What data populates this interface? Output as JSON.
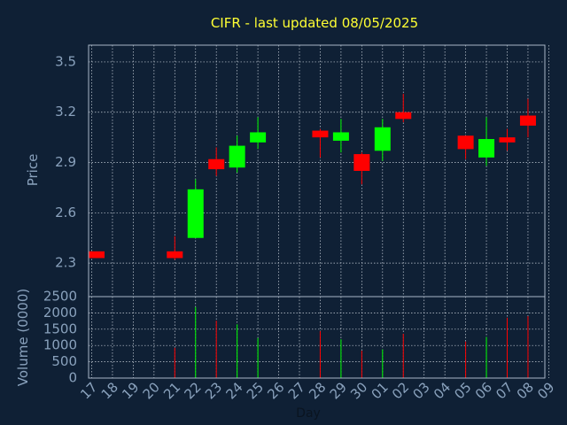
{
  "chart_data": {
    "type": "candlestick",
    "title": "CIFR - last updated 08/05/2025",
    "xlabel": "Day",
    "price_axis": {
      "label": "Price",
      "ticks": [
        "3.5",
        "3.2",
        "2.9",
        "2.6",
        "2.3"
      ],
      "tick_values": [
        3.5,
        3.2,
        2.9,
        2.6,
        2.3
      ],
      "ylim": [
        2.1,
        3.6
      ]
    },
    "volume_axis": {
      "label": "Volume (0000)",
      "ticks": [
        "2500",
        "2000",
        "1500",
        "1000",
        "500",
        "0"
      ],
      "tick_values": [
        2500,
        2000,
        1500,
        1000,
        500,
        0
      ],
      "ylim": [
        0,
        2500
      ]
    },
    "x_ticks": [
      "17",
      "18",
      "19",
      "20",
      "21",
      "22",
      "23",
      "24",
      "25",
      "26",
      "27",
      "28",
      "29",
      "30",
      "01",
      "02",
      "03",
      "04",
      "05",
      "06",
      "07",
      "08",
      "09"
    ],
    "candles": [
      {
        "day": "17",
        "open": 2.37,
        "close": 2.33,
        "high": 2.37,
        "low": 2.33,
        "volume": 0
      },
      {
        "day": "21",
        "open": 2.37,
        "close": 2.33,
        "high": 2.46,
        "low": 2.32,
        "volume": 930
      },
      {
        "day": "22",
        "open": 2.45,
        "close": 2.74,
        "high": 2.8,
        "low": 2.45,
        "volume": 2180
      },
      {
        "day": "23",
        "open": 2.92,
        "close": 2.86,
        "high": 2.99,
        "low": 2.82,
        "volume": 1760
      },
      {
        "day": "24",
        "open": 2.87,
        "close": 3.0,
        "high": 3.06,
        "low": 2.84,
        "volume": 1650
      },
      {
        "day": "25",
        "open": 3.02,
        "close": 3.08,
        "high": 3.17,
        "low": 2.98,
        "volume": 1230
      },
      {
        "day": "28",
        "open": 3.09,
        "close": 3.05,
        "high": 3.1,
        "low": 2.93,
        "volume": 1440
      },
      {
        "day": "29",
        "open": 3.03,
        "close": 3.08,
        "high": 3.16,
        "low": 2.96,
        "volume": 1190
      },
      {
        "day": "30",
        "open": 2.95,
        "close": 2.85,
        "high": 2.96,
        "low": 2.77,
        "volume": 840
      },
      {
        "day": "01",
        "open": 2.97,
        "close": 3.11,
        "high": 3.16,
        "low": 2.91,
        "volume": 880
      },
      {
        "day": "02",
        "open": 3.2,
        "close": 3.16,
        "high": 3.31,
        "low": 3.14,
        "volume": 1360
      },
      {
        "day": "05",
        "open": 3.06,
        "close": 2.98,
        "high": 3.06,
        "low": 2.92,
        "volume": 1120
      },
      {
        "day": "06",
        "open": 2.93,
        "close": 3.04,
        "high": 3.17,
        "low": 2.88,
        "volume": 1260
      },
      {
        "day": "07",
        "open": 3.05,
        "close": 3.02,
        "high": 3.1,
        "low": 2.97,
        "volume": 1850
      },
      {
        "day": "08",
        "open": 3.18,
        "close": 3.12,
        "high": 3.28,
        "low": 3.05,
        "volume": 1900
      }
    ],
    "colors": {
      "background": "#0f2035",
      "plot_border": "#a8b6c6",
      "grid": "#c8d0da",
      "title": "#ffff33",
      "axis_text": "#8aa2bd",
      "up": "#00ff00",
      "down": "#ff0000"
    },
    "grid": true
  }
}
